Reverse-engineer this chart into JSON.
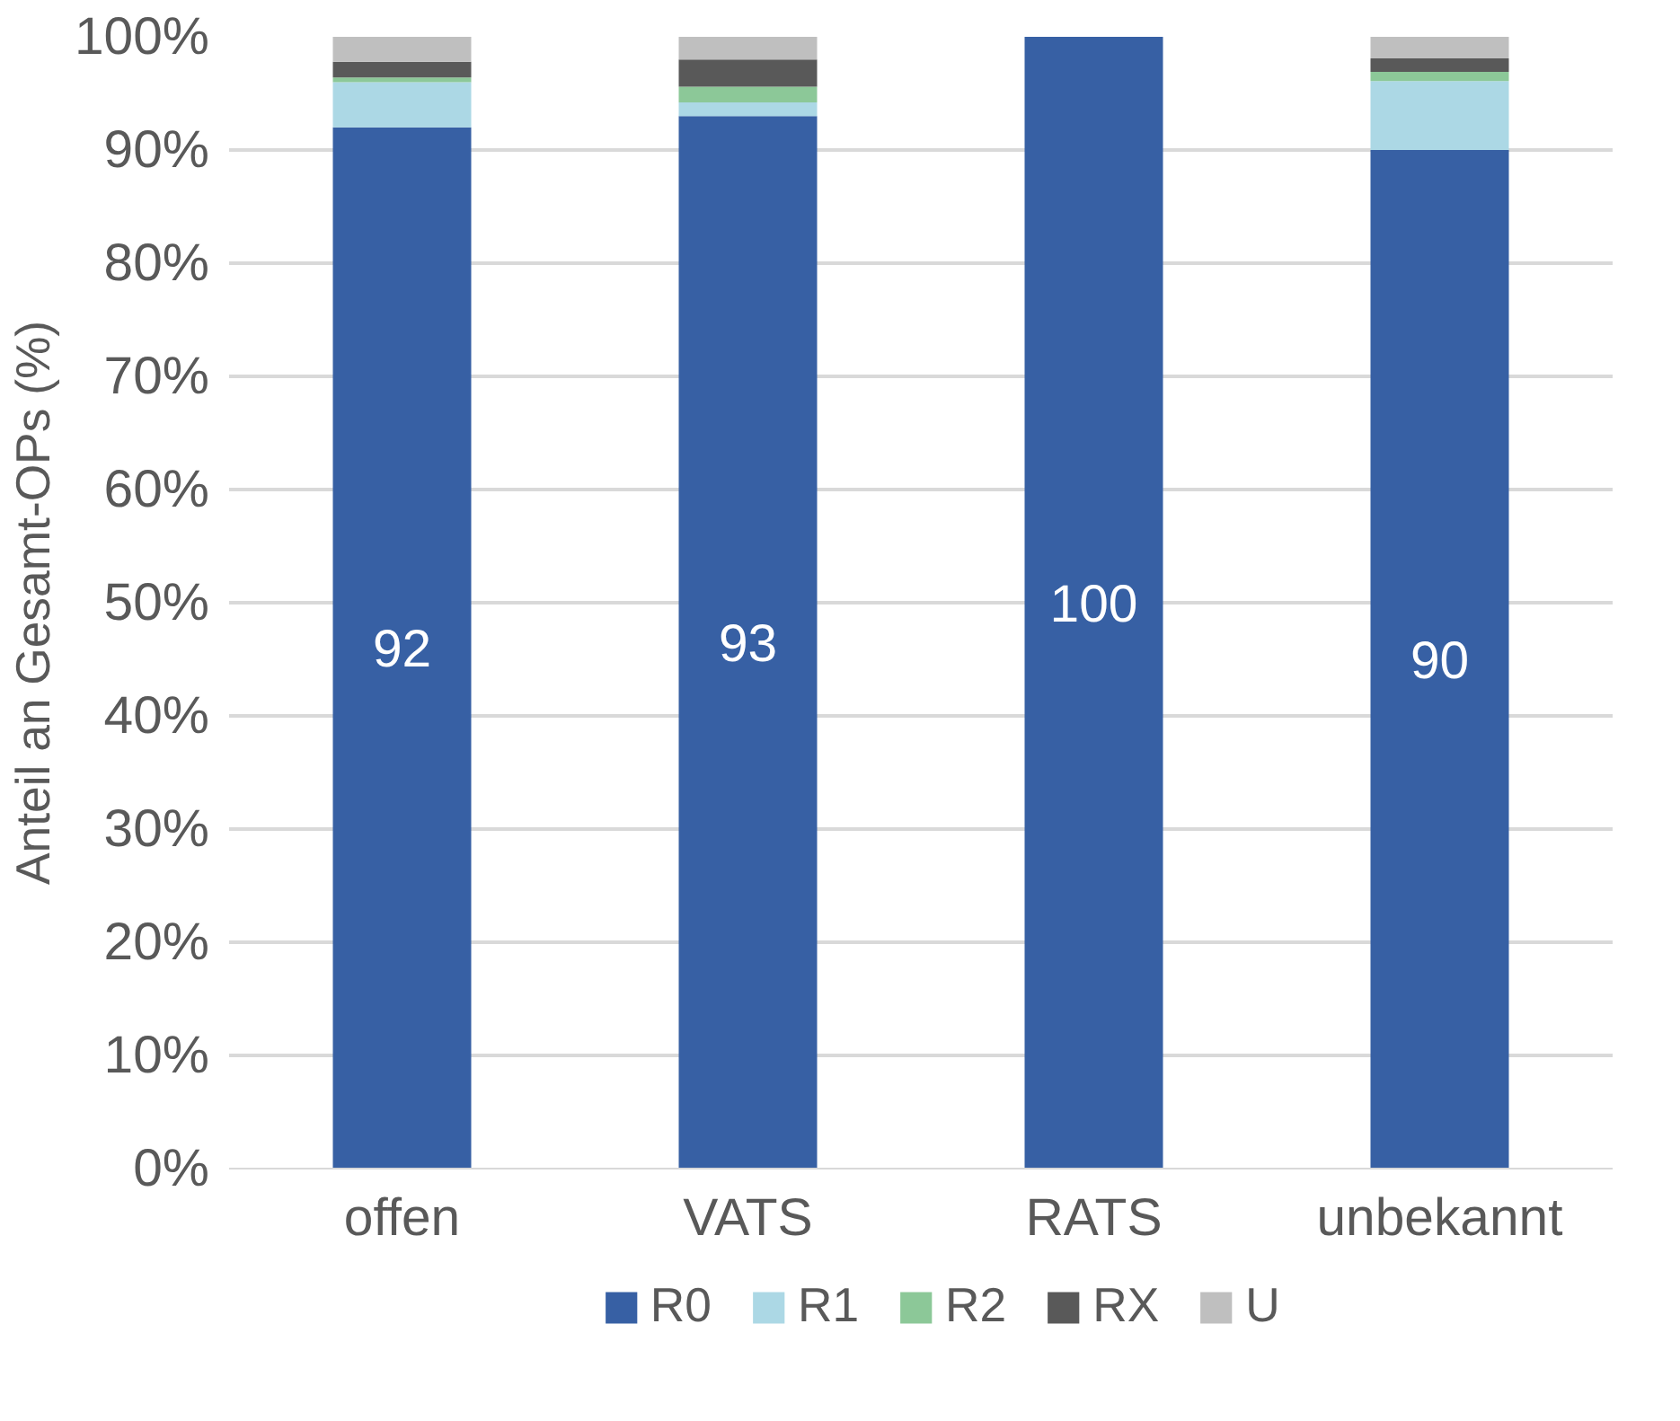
{
  "chart_data": {
    "type": "bar",
    "stacked": true,
    "ylabel": "Anteil an Gesamt-OPs (%)",
    "categories": [
      "offen",
      "VATS",
      "RATS",
      "unbekannt"
    ],
    "series": [
      {
        "name": "R0",
        "color": "#3760a4",
        "values": [
          92,
          93,
          100,
          90
        ],
        "value_labels": [
          "92",
          "93",
          "100",
          "90"
        ]
      },
      {
        "name": "R1",
        "color": "#acd8e5",
        "values": [
          4.0,
          1.2,
          0,
          6.1
        ]
      },
      {
        "name": "R2",
        "color": "#8cc898",
        "values": [
          0.4,
          1.4,
          0,
          0.8
        ]
      },
      {
        "name": "RX",
        "color": "#595959",
        "values": [
          1.4,
          2.4,
          0,
          1.2
        ]
      },
      {
        "name": "U",
        "color": "#bfbfbf",
        "values": [
          2.2,
          2.0,
          0,
          1.9
        ]
      }
    ],
    "ylim": [
      0,
      100
    ],
    "yticks": [
      {
        "value": 0,
        "label": "0%"
      },
      {
        "value": 10,
        "label": "10%"
      },
      {
        "value": 20,
        "label": "20%"
      },
      {
        "value": 30,
        "label": "30%"
      },
      {
        "value": 40,
        "label": "40%"
      },
      {
        "value": 50,
        "label": "50%"
      },
      {
        "value": 60,
        "label": "60%"
      },
      {
        "value": 70,
        "label": "70%"
      },
      {
        "value": 80,
        "label": "80%"
      },
      {
        "value": 90,
        "label": "90%"
      },
      {
        "value": 100,
        "label": "100%"
      }
    ],
    "grid": "y",
    "legend": "bottom"
  }
}
